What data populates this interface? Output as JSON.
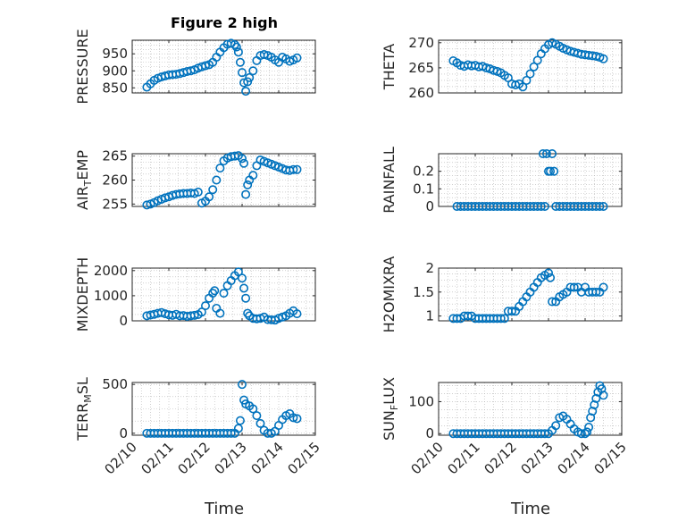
{
  "title": "Figure 2 high",
  "xlabel": "Time",
  "marker_color": "#0072BD",
  "x_ticks": [
    "02/10",
    "02/11",
    "02/12",
    "02/13",
    "02/14",
    "02/15"
  ],
  "chart_data": [
    {
      "type": "scatter",
      "ylabel": "PRESSURE",
      "ylim": [
        835,
        990
      ],
      "yticks": [
        850,
        900,
        950
      ],
      "grid": true,
      "x": [
        0.4,
        0.5,
        0.6,
        0.7,
        0.8,
        0.9,
        1.0,
        1.1,
        1.2,
        1.3,
        1.4,
        1.5,
        1.6,
        1.7,
        1.8,
        1.9,
        2.0,
        2.1,
        2.2,
        2.3,
        2.4,
        2.5,
        2.6,
        2.7,
        2.8,
        2.85,
        2.9,
        2.95,
        3.0,
        3.05,
        3.1,
        3.15,
        3.2,
        3.3,
        3.4,
        3.5,
        3.6,
        3.7,
        3.8,
        3.9,
        4.0,
        4.1,
        4.2,
        4.3,
        4.4,
        4.5
      ],
      "y": [
        852,
        862,
        872,
        878,
        882,
        885,
        888,
        889,
        890,
        892,
        895,
        898,
        900,
        903,
        908,
        912,
        915,
        918,
        925,
        940,
        955,
        968,
        978,
        981,
        977,
        970,
        955,
        925,
        895,
        865,
        840,
        868,
        880,
        900,
        930,
        945,
        948,
        945,
        940,
        932,
        925,
        940,
        935,
        928,
        932,
        938
      ]
    },
    {
      "type": "scatter",
      "ylabel": "THETA",
      "ylim": [
        260,
        270.5
      ],
      "yticks": [
        260,
        265,
        270
      ],
      "grid": true,
      "x": [
        0.4,
        0.5,
        0.6,
        0.7,
        0.8,
        0.9,
        1.0,
        1.1,
        1.2,
        1.3,
        1.4,
        1.5,
        1.6,
        1.7,
        1.8,
        1.9,
        2.0,
        2.1,
        2.2,
        2.3,
        2.4,
        2.5,
        2.6,
        2.7,
        2.8,
        2.9,
        3.0,
        3.1,
        3.2,
        3.3,
        3.4,
        3.5,
        3.6,
        3.7,
        3.8,
        3.9,
        4.0,
        4.1,
        4.2,
        4.3,
        4.4,
        4.5
      ],
      "y": [
        266.4,
        266.0,
        265.5,
        265.3,
        265.6,
        265.4,
        265.5,
        265.2,
        265.3,
        265.0,
        264.8,
        264.5,
        264.3,
        264.0,
        263.5,
        263.0,
        261.8,
        261.6,
        261.8,
        261.2,
        262.5,
        263.8,
        265.2,
        266.5,
        267.8,
        268.8,
        269.6,
        270.0,
        269.7,
        269.3,
        268.9,
        268.6,
        268.3,
        268.1,
        267.9,
        267.7,
        267.6,
        267.5,
        267.4,
        267.3,
        267.1,
        266.8
      ]
    },
    {
      "type": "scatter",
      "ylabel": "AIR_TEMP",
      "ylim": [
        254.5,
        265.5
      ],
      "yticks": [
        255,
        260,
        265
      ],
      "grid": true,
      "x": [
        0.4,
        0.5,
        0.6,
        0.7,
        0.8,
        0.9,
        1.0,
        1.1,
        1.2,
        1.3,
        1.4,
        1.5,
        1.6,
        1.7,
        1.8,
        1.9,
        2.0,
        2.1,
        2.2,
        2.3,
        2.4,
        2.5,
        2.6,
        2.7,
        2.8,
        2.9,
        3.0,
        3.05,
        3.1,
        3.15,
        3.2,
        3.3,
        3.4,
        3.5,
        3.6,
        3.7,
        3.8,
        3.9,
        4.0,
        4.1,
        4.2,
        4.3,
        4.4,
        4.5
      ],
      "y": [
        254.8,
        255.0,
        255.3,
        255.7,
        256.0,
        256.3,
        256.5,
        256.8,
        257.0,
        257.1,
        257.2,
        257.2,
        257.3,
        257.2,
        257.5,
        255.2,
        255.6,
        256.5,
        258.0,
        260.0,
        262.5,
        264.0,
        264.6,
        264.9,
        265.0,
        265.1,
        264.5,
        263.5,
        257.0,
        259.0,
        260.0,
        261.0,
        263.0,
        264.2,
        263.9,
        263.6,
        263.3,
        263.0,
        262.7,
        262.4,
        262.1,
        262.0,
        262.2,
        262.2
      ]
    },
    {
      "type": "scatter",
      "ylabel": "RAINFALL",
      "ylim": [
        0,
        0.3
      ],
      "yticks": [
        0,
        0.1,
        0.2
      ],
      "grid": true,
      "x": [
        0.5,
        0.6,
        0.7,
        0.8,
        0.9,
        1.0,
        1.1,
        1.2,
        1.3,
        1.4,
        1.5,
        1.6,
        1.7,
        1.8,
        1.9,
        2.0,
        2.1,
        2.2,
        2.3,
        2.4,
        2.5,
        2.6,
        2.7,
        2.8,
        2.85,
        2.9,
        2.95,
        3.0,
        3.05,
        3.1,
        3.15,
        3.2,
        3.3,
        3.4,
        3.5,
        3.6,
        3.7,
        3.8,
        3.9,
        4.0,
        4.1,
        4.2,
        4.3,
        4.4,
        4.5
      ],
      "y": [
        0,
        0,
        0,
        0,
        0,
        0,
        0,
        0,
        0,
        0,
        0,
        0,
        0,
        0,
        0,
        0,
        0,
        0,
        0,
        0,
        0,
        0,
        0,
        0,
        0.3,
        0,
        0.3,
        0.2,
        0.2,
        0.3,
        0.2,
        0,
        0,
        0,
        0,
        0,
        0,
        0,
        0,
        0,
        0,
        0,
        0,
        0,
        0
      ]
    },
    {
      "type": "scatter",
      "ylabel": "MIXDEPTH",
      "ylim": [
        0,
        2100
      ],
      "yticks": [
        0,
        1000,
        2000
      ],
      "grid": true,
      "x": [
        0.4,
        0.5,
        0.6,
        0.7,
        0.8,
        0.9,
        1.0,
        1.1,
        1.2,
        1.3,
        1.4,
        1.5,
        1.6,
        1.7,
        1.8,
        1.9,
        2.0,
        2.1,
        2.2,
        2.25,
        2.3,
        2.4,
        2.5,
        2.6,
        2.7,
        2.8,
        2.9,
        3.0,
        3.05,
        3.1,
        3.15,
        3.2,
        3.3,
        3.4,
        3.5,
        3.6,
        3.7,
        3.8,
        3.9,
        4.0,
        4.1,
        4.2,
        4.3,
        4.4,
        4.5
      ],
      "y": [
        200,
        230,
        260,
        300,
        330,
        280,
        240,
        220,
        260,
        200,
        210,
        180,
        200,
        220,
        250,
        350,
        600,
        900,
        1100,
        1200,
        500,
        300,
        1100,
        1400,
        1600,
        1800,
        1950,
        1700,
        1300,
        900,
        300,
        200,
        100,
        80,
        100,
        150,
        50,
        40,
        30,
        100,
        150,
        200,
        300,
        400,
        280
      ]
    },
    {
      "type": "scatter",
      "ylabel": "H2OMIXRA",
      "ylim": [
        0.9,
        2.0
      ],
      "yticks": [
        1,
        1.5,
        2
      ],
      "grid": true,
      "x": [
        0.4,
        0.5,
        0.6,
        0.7,
        0.8,
        0.9,
        1.0,
        1.1,
        1.2,
        1.3,
        1.4,
        1.5,
        1.6,
        1.7,
        1.8,
        1.9,
        2.0,
        2.1,
        2.2,
        2.3,
        2.4,
        2.5,
        2.6,
        2.7,
        2.8,
        2.9,
        3.0,
        3.05,
        3.1,
        3.2,
        3.3,
        3.4,
        3.5,
        3.6,
        3.7,
        3.8,
        3.9,
        4.0,
        4.1,
        4.2,
        4.3,
        4.4,
        4.5
      ],
      "y": [
        0.95,
        0.95,
        0.95,
        1.0,
        1.0,
        1.0,
        0.95,
        0.95,
        0.95,
        0.95,
        0.95,
        0.95,
        0.95,
        0.95,
        0.95,
        1.1,
        1.1,
        1.1,
        1.2,
        1.3,
        1.4,
        1.5,
        1.6,
        1.7,
        1.8,
        1.85,
        1.9,
        1.8,
        1.3,
        1.3,
        1.4,
        1.45,
        1.5,
        1.6,
        1.6,
        1.6,
        1.5,
        1.6,
        1.5,
        1.5,
        1.5,
        1.5,
        1.6
      ]
    },
    {
      "type": "scatter",
      "ylabel": "TERR_MSL",
      "ylim": [
        -20,
        520
      ],
      "yticks": [
        0,
        500
      ],
      "grid": true,
      "x": [
        0.4,
        0.5,
        0.6,
        0.7,
        0.8,
        0.9,
        1.0,
        1.1,
        1.2,
        1.3,
        1.4,
        1.5,
        1.6,
        1.7,
        1.8,
        1.9,
        2.0,
        2.1,
        2.2,
        2.3,
        2.4,
        2.5,
        2.6,
        2.7,
        2.8,
        2.9,
        2.95,
        3.0,
        3.05,
        3.1,
        3.2,
        3.3,
        3.4,
        3.5,
        3.6,
        3.7,
        3.8,
        3.9,
        4.0,
        4.1,
        4.2,
        4.3,
        4.4,
        4.5
      ],
      "y": [
        0,
        0,
        0,
        0,
        0,
        0,
        0,
        0,
        0,
        0,
        0,
        0,
        0,
        0,
        0,
        0,
        0,
        0,
        0,
        0,
        0,
        0,
        0,
        0,
        0,
        50,
        130,
        500,
        340,
        300,
        280,
        250,
        180,
        100,
        30,
        0,
        0,
        20,
        80,
        140,
        180,
        200,
        160,
        150
      ]
    },
    {
      "type": "scatter",
      "ylabel": "SUN_FLUX",
      "ylim": [
        -5,
        160
      ],
      "yticks": [
        0,
        100
      ],
      "grid": true,
      "x": [
        0.4,
        0.5,
        0.6,
        0.7,
        0.8,
        0.9,
        1.0,
        1.1,
        1.2,
        1.3,
        1.4,
        1.5,
        1.6,
        1.7,
        1.8,
        1.9,
        2.0,
        2.1,
        2.2,
        2.3,
        2.4,
        2.5,
        2.6,
        2.7,
        2.8,
        2.9,
        3.0,
        3.1,
        3.2,
        3.3,
        3.4,
        3.5,
        3.6,
        3.7,
        3.8,
        3.9,
        4.0,
        4.05,
        4.1,
        4.15,
        4.2,
        4.25,
        4.3,
        4.35,
        4.4,
        4.45,
        4.5
      ],
      "y": [
        0,
        0,
        0,
        0,
        0,
        0,
        0,
        0,
        0,
        0,
        0,
        0,
        0,
        0,
        0,
        0,
        0,
        0,
        0,
        0,
        0,
        0,
        0,
        0,
        0,
        0,
        0,
        10,
        25,
        50,
        55,
        45,
        30,
        15,
        5,
        0,
        0,
        5,
        20,
        50,
        70,
        90,
        110,
        130,
        150,
        140,
        120
      ]
    }
  ]
}
